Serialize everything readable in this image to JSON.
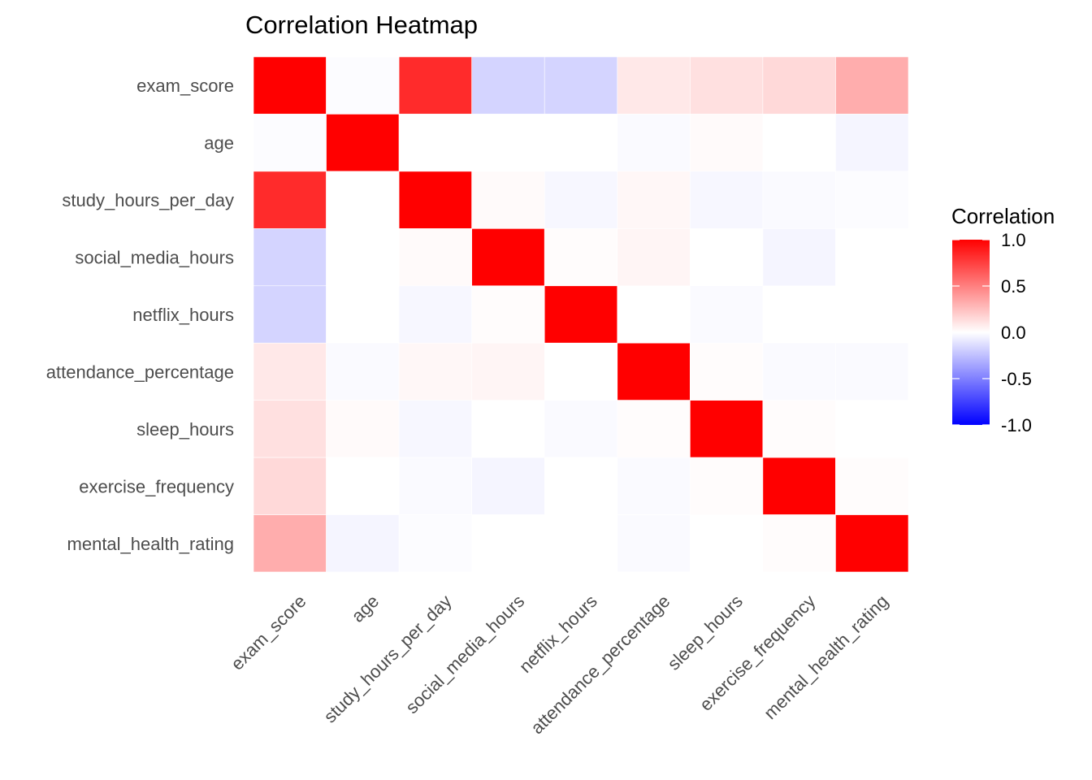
{
  "chart_data": {
    "type": "heatmap",
    "title": "Correlation Heatmap",
    "variables": [
      "exam_score",
      "age",
      "study_hours_per_day",
      "social_media_hours",
      "netflix_hours",
      "attendance_percentage",
      "sleep_hours",
      "exercise_frequency",
      "mental_health_rating"
    ],
    "matrix": [
      [
        1.0,
        -0.01,
        0.83,
        -0.17,
        -0.17,
        0.09,
        0.12,
        0.15,
        0.32
      ],
      [
        -0.01,
        1.0,
        0.0,
        0.0,
        0.0,
        -0.02,
        0.02,
        0.0,
        -0.04
      ],
      [
        0.83,
        0.0,
        1.0,
        0.02,
        -0.03,
        0.03,
        -0.03,
        -0.02,
        -0.01
      ],
      [
        -0.17,
        0.0,
        0.02,
        1.0,
        0.01,
        0.04,
        0.0,
        -0.04,
        0.0
      ],
      [
        -0.17,
        0.0,
        -0.03,
        0.01,
        1.0,
        0.0,
        -0.02,
        0.0,
        0.0
      ],
      [
        0.09,
        -0.02,
        0.03,
        0.04,
        0.0,
        1.0,
        0.01,
        -0.02,
        -0.02
      ],
      [
        0.12,
        0.02,
        -0.03,
        0.0,
        -0.02,
        0.01,
        1.0,
        0.01,
        0.0
      ],
      [
        0.15,
        0.0,
        -0.02,
        -0.04,
        0.0,
        -0.02,
        0.01,
        1.0,
        0.01
      ],
      [
        0.32,
        -0.04,
        -0.01,
        0.0,
        0.0,
        -0.02,
        0.0,
        0.01,
        1.0
      ]
    ],
    "legend": {
      "title": "Correlation",
      "ticks": [
        "1.0",
        "0.5",
        "0.0",
        "-0.5",
        "-1.0"
      ],
      "tick_values": [
        1.0,
        0.5,
        0.0,
        -0.5,
        -1.0
      ],
      "range": [
        -1,
        1
      ],
      "low_color": "#0000FF",
      "mid_color": "#FFFFFF",
      "high_color": "#FF0000"
    },
    "legend_position": "right",
    "grid": false
  }
}
